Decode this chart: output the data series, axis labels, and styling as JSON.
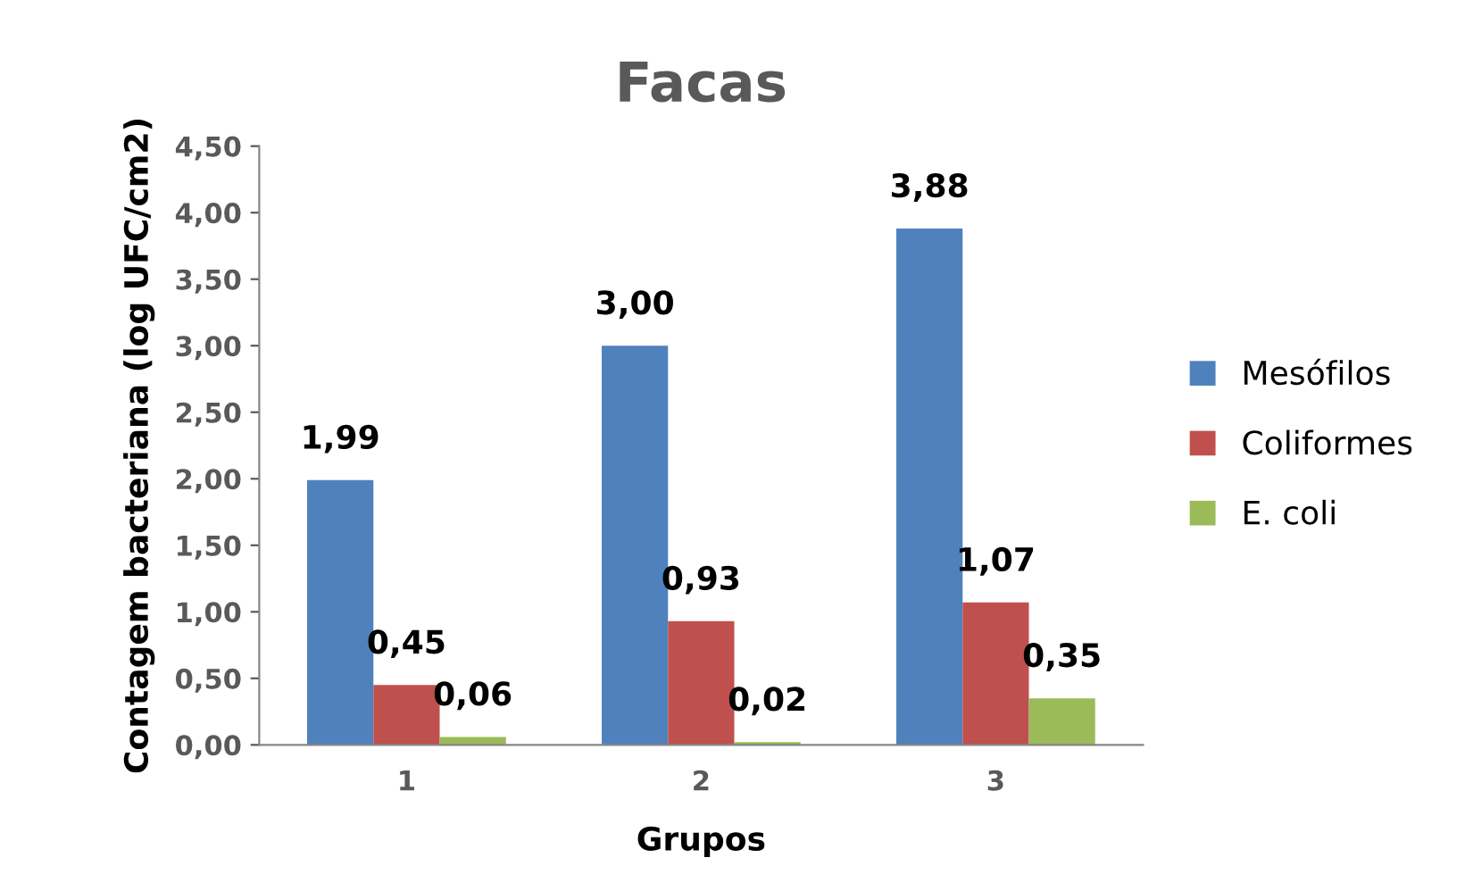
{
  "chart_data": {
    "type": "bar",
    "title": "Facas",
    "xlabel": "Grupos",
    "ylabel": "Contagem bacteriana (log UFC/cm2)",
    "categories": [
      "1",
      "2",
      "3"
    ],
    "series": [
      {
        "name": "Mesófilos",
        "color": "#4f81bd",
        "values": [
          1.99,
          3.0,
          3.88
        ],
        "value_labels": [
          "1,99",
          "3,00",
          "3,88"
        ]
      },
      {
        "name": "Coliformes",
        "color": "#c0504d",
        "values": [
          0.45,
          0.93,
          1.07
        ],
        "value_labels": [
          "0,45",
          "0,93",
          "1,07"
        ]
      },
      {
        "name": "E. coli",
        "color": "#9bbb59",
        "values": [
          0.06,
          0.02,
          0.35
        ],
        "value_labels": [
          "0,06",
          "0,02",
          "0,35"
        ]
      }
    ],
    "ylim": [
      0,
      4.5
    ],
    "yticks": [
      {
        "value": 0,
        "label": "0,00"
      },
      {
        "value": 0.5,
        "label": "0,50"
      },
      {
        "value": 1,
        "label": "1,00"
      },
      {
        "value": 1.5,
        "label": "1,50"
      },
      {
        "value": 2,
        "label": "2,00"
      },
      {
        "value": 2.5,
        "label": "2,50"
      },
      {
        "value": 3,
        "label": "3,00"
      },
      {
        "value": 3.5,
        "label": "3,50"
      },
      {
        "value": 4,
        "label": "4,00"
      },
      {
        "value": 4.5,
        "label": "4,50"
      }
    ],
    "grid": false,
    "legend": "right"
  }
}
